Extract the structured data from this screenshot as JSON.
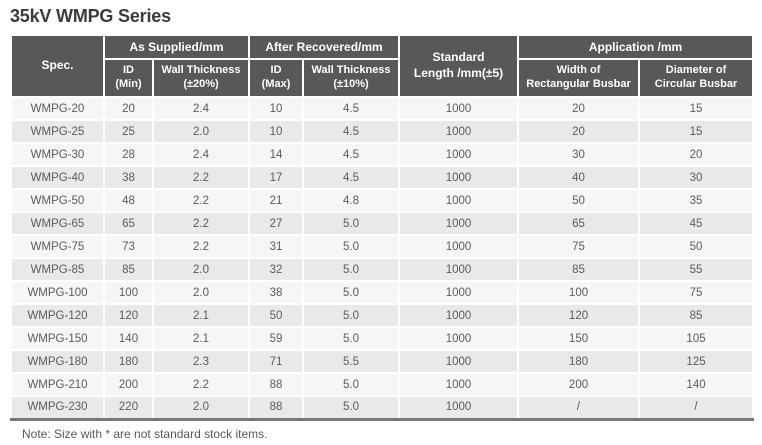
{
  "page": {
    "title": "35kV WMPG Series",
    "note": "Note: Size with * are not standard stock items."
  },
  "table": {
    "header": {
      "spec": "Spec.",
      "as_supplied": "As Supplied/mm",
      "after_recovered": "After Recovered/mm",
      "standard_length": [
        "Standard",
        "Length /mm(±5)"
      ],
      "application": "Application /mm",
      "id_min": [
        "ID",
        "(Min)"
      ],
      "wall_thickness_20": [
        "Wall Thickness",
        "(±20%)"
      ],
      "id_max": [
        "ID",
        "(Max)"
      ],
      "wall_thickness_10": [
        "Wall Thickness",
        "(±10%)"
      ],
      "width_rect_busbar": [
        "Width of",
        "Rectangular Busbar"
      ],
      "diameter_circ_busbar": [
        "Diameter of",
        "Circular Busbar"
      ]
    },
    "rows": [
      [
        "WMPG-20",
        "20",
        "2.4",
        "10",
        "4.5",
        "1000",
        "20",
        "15"
      ],
      [
        "WMPG-25",
        "25",
        "2.0",
        "10",
        "4.5",
        "1000",
        "20",
        "15"
      ],
      [
        "WMPG-30",
        "28",
        "2.4",
        "14",
        "4.5",
        "1000",
        "30",
        "20"
      ],
      [
        "WMPG-40",
        "38",
        "2.2",
        "17",
        "4.5",
        "1000",
        "40",
        "30"
      ],
      [
        "WMPG-50",
        "48",
        "2.2",
        "21",
        "4.8",
        "1000",
        "50",
        "35"
      ],
      [
        "WMPG-65",
        "65",
        "2.2",
        "27",
        "5.0",
        "1000",
        "65",
        "45"
      ],
      [
        "WMPG-75",
        "73",
        "2.2",
        "31",
        "5.0",
        "1000",
        "75",
        "50"
      ],
      [
        "WMPG-85",
        "85",
        "2.0",
        "32",
        "5.0",
        "1000",
        "85",
        "55"
      ],
      [
        "WMPG-100",
        "100",
        "2.0",
        "38",
        "5.0",
        "1000",
        "100",
        "75"
      ],
      [
        "WMPG-120",
        "120",
        "2.1",
        "50",
        "5.0",
        "1000",
        "120",
        "85"
      ],
      [
        "WMPG-150",
        "140",
        "2.1",
        "59",
        "5.0",
        "1000",
        "150",
        "105"
      ],
      [
        "WMPG-180",
        "180",
        "2.3",
        "71",
        "5.5",
        "1000",
        "180",
        "125"
      ],
      [
        "WMPG-210",
        "200",
        "2.2",
        "88",
        "5.0",
        "1000",
        "200",
        "140"
      ],
      [
        "WMPG-230",
        "220",
        "2.0",
        "88",
        "5.0",
        "1000",
        "/",
        "/"
      ]
    ],
    "colors": {
      "header_bg": "#58585a",
      "header_text": "#ffffff",
      "row_odd_bg": "#f6f6f6",
      "row_even_bg": "#e9e9ea",
      "body_text": "#5b5b5d",
      "bottom_border": "#77777a",
      "title_text": "#3b3b3d"
    }
  }
}
